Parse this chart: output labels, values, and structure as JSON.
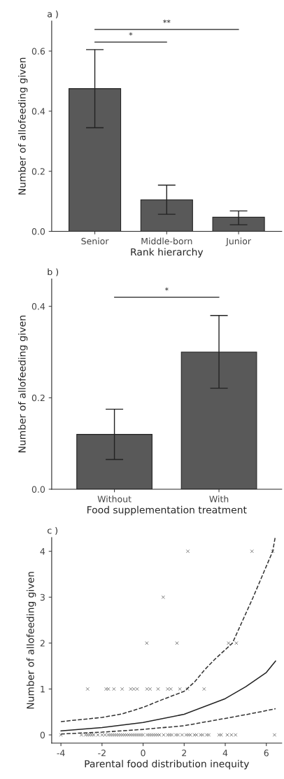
{
  "chart_data": [
    {
      "type": "bar",
      "title": "a )",
      "xlabel": "Rank hierarchy",
      "ylabel": "Number of allofeeding given",
      "categories": [
        "Senior",
        "Middle-born",
        "Junior"
      ],
      "values": [
        0.475,
        0.105,
        0.047
      ],
      "color": "#595959",
      "errors": [
        [
          0.345,
          0.605
        ],
        [
          0.057,
          0.154
        ],
        [
          0.022,
          0.068
        ]
      ],
      "ylim": [
        0,
        0.7
      ],
      "yticks": [
        {
          "value": 0,
          "label": "0.0"
        },
        0.2,
        0.4,
        0.6
      ],
      "grid": false,
      "legend": false,
      "annotations": [
        "*",
        "**"
      ]
    },
    {
      "type": "bar",
      "title": "b )",
      "xlabel": "Food supplementation treatment",
      "ylabel": "Number of allofeeding given",
      "categories": [
        "Without",
        "With"
      ],
      "values": [
        0.12,
        0.3
      ],
      "color": "#595959",
      "errors": [
        [
          0.065,
          0.175
        ],
        [
          0.221,
          0.38
        ]
      ],
      "ylim": [
        0,
        0.46
      ],
      "yticks": [
        {
          "value": 0,
          "label": "0.0"
        },
        0.2,
        0.4
      ],
      "grid": false,
      "legend": false,
      "annotations": [
        "*"
      ]
    },
    {
      "type": "scatter",
      "title": "c )",
      "xlabel": "Parental food distribution inequity",
      "ylabel": "Number of allofeeding given",
      "xlim": [
        -4.45,
        6.75
      ],
      "xticks": [
        -4,
        -2,
        0,
        2,
        4,
        6
      ],
      "ylim": [
        -0.18,
        4.3
      ],
      "yticks": [
        0,
        1,
        2,
        3,
        4
      ],
      "grid": false,
      "legend": false,
      "series": [
        {
          "type": "scatter",
          "marker": "cross",
          "color": "#666666",
          "x": [
            -4,
            -3.0,
            -2.8,
            -2.7,
            -2.6,
            -2.5,
            -2.4,
            -2.2,
            -2.0,
            -1.85,
            -1.7,
            -1.6,
            -1.5,
            -1.4,
            -1.3,
            -1.2,
            -1.1,
            -1.0,
            -0.9,
            -0.8,
            -0.7,
            -0.6,
            -0.5,
            -0.4,
            -0.3,
            -0.2,
            -0.1,
            0.0,
            0.2,
            0.3,
            0.4,
            0.5,
            0.6,
            0.7,
            0.8,
            1.0,
            1.2,
            1.3,
            1.4,
            1.6,
            1.7,
            1.9,
            2.1,
            2.2,
            2.3,
            2.5,
            2.6,
            2.8,
            2.9,
            3.1,
            3.2,
            3.7,
            3.8,
            4.1,
            4.3,
            4.5,
            6.4,
            -2.7,
            -1.8,
            -1.69,
            -1.42,
            -1.02,
            -0.6,
            -0.45,
            -0.29,
            0.19,
            0.34,
            0.73,
            1.2,
            1.35,
            1.79,
            2.16,
            2.97,
            0.18,
            1.65,
            4.16,
            4.54,
            0.98,
            2.18,
            5.3,
            6.31
          ],
          "values": [
            0,
            0,
            0,
            0,
            0,
            0,
            0,
            0,
            0,
            0,
            0,
            0,
            0,
            0,
            0,
            0,
            0,
            0,
            0,
            0,
            0,
            0,
            0,
            0,
            0,
            0,
            0,
            0,
            0,
            0,
            0,
            0,
            0,
            0,
            0,
            0,
            0,
            0,
            0,
            0,
            0,
            0,
            0,
            0,
            0,
            0,
            0,
            0,
            0,
            0,
            0,
            0,
            0,
            0,
            0,
            0,
            0,
            1,
            1,
            1,
            1,
            1,
            1,
            1,
            1,
            1,
            1,
            1,
            1,
            1,
            1,
            1,
            1,
            2,
            2,
            2,
            2,
            3,
            4,
            4,
            4
          ]
        },
        {
          "type": "line",
          "line_style": "solid",
          "color": "#222222",
          "x": [
            -4,
            -2,
            0,
            2,
            4,
            5,
            6,
            6.45
          ],
          "values": [
            0.086,
            0.16,
            0.27,
            0.45,
            0.79,
            1.05,
            1.36,
            1.61
          ]
        },
        {
          "type": "line",
          "line_style": "dashed",
          "color": "#333333",
          "x": [
            -4,
            -2,
            -1,
            0,
            1,
            2,
            2.5,
            3,
            3.5,
            4.35,
            5.36,
            6.31,
            6.43
          ],
          "values": [
            0.29,
            0.38,
            0.46,
            0.6,
            0.78,
            0.95,
            1.15,
            1.42,
            1.65,
            2.0,
            3.0,
            4.0,
            4.3
          ]
        },
        {
          "type": "line",
          "line_style": "dashed",
          "color": "#333333",
          "x": [
            -4,
            -2,
            0,
            2,
            4,
            5,
            6.45
          ],
          "values": [
            0.02,
            0.06,
            0.12,
            0.2,
            0.36,
            0.44,
            0.57
          ]
        }
      ]
    }
  ]
}
